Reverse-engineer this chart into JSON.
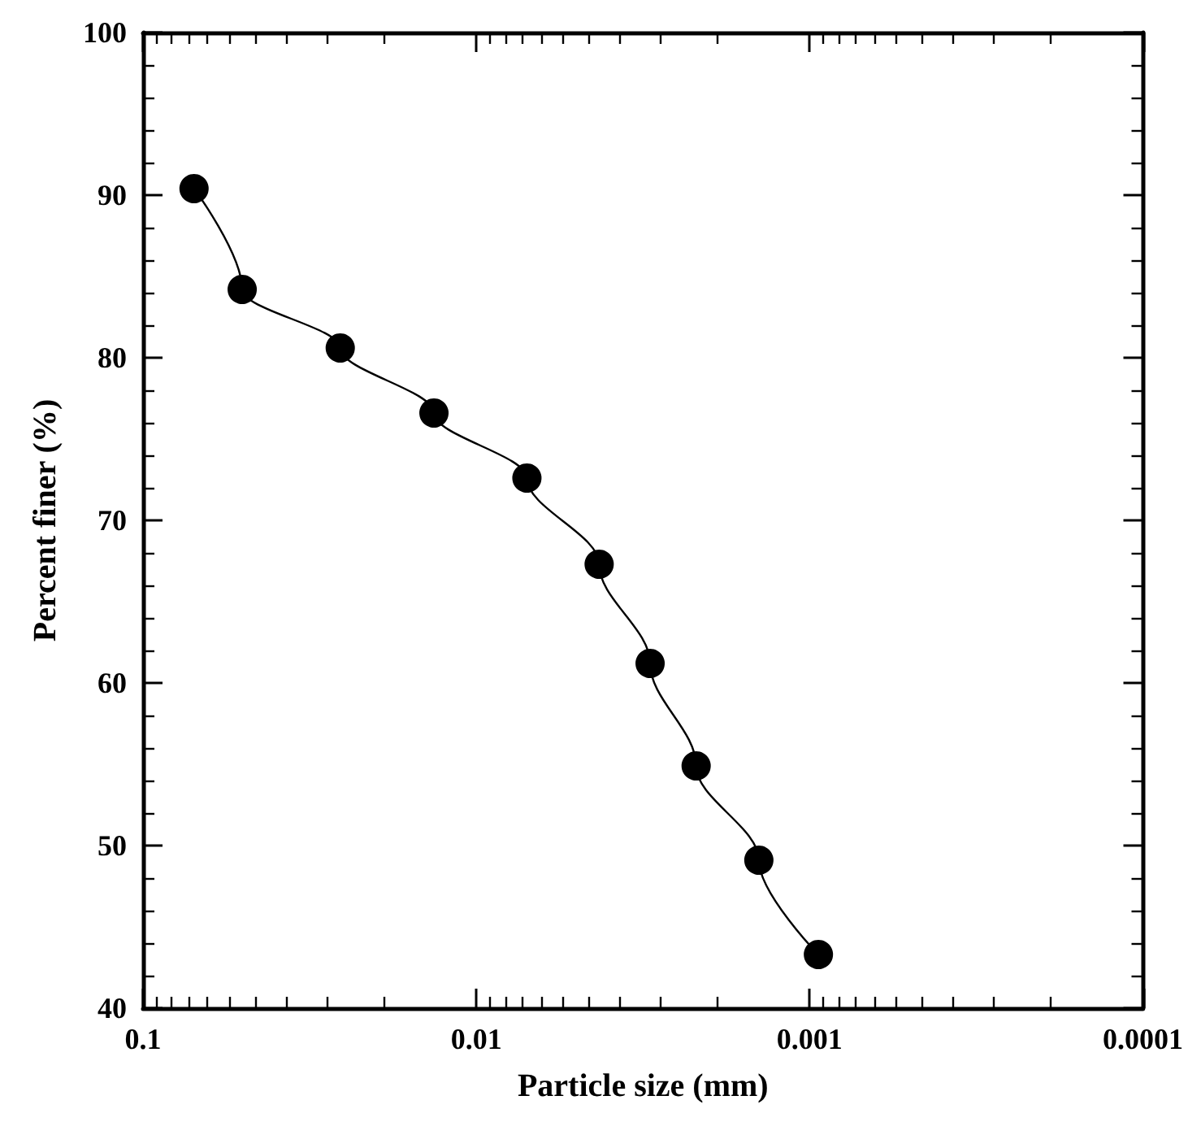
{
  "chart_data": {
    "type": "line",
    "xlabel": "Particle size (mm)",
    "ylabel": "Percent finer (%)",
    "x": [
      0.0703,
      0.0504,
      0.0256,
      0.0134,
      0.00705,
      0.00428,
      0.00301,
      0.00219,
      0.00142,
      0.000941
    ],
    "series": [
      {
        "color": "#000000",
        "values": [
          90.4,
          84.2,
          80.6,
          76.6,
          72.6,
          67.3,
          61.2,
          54.9,
          49.1,
          43.3
        ]
      }
    ],
    "log": "x",
    "xlim": [
      0.1,
      0.0001
    ],
    "xticks": [
      0.1,
      0.01,
      0.001,
      0.0001
    ],
    "ylim": [
      40,
      100
    ],
    "yticks": [
      40,
      50,
      60,
      70,
      80,
      90,
      100
    ],
    "grid": false,
    "marker": "circle",
    "line_style": "solid"
  }
}
